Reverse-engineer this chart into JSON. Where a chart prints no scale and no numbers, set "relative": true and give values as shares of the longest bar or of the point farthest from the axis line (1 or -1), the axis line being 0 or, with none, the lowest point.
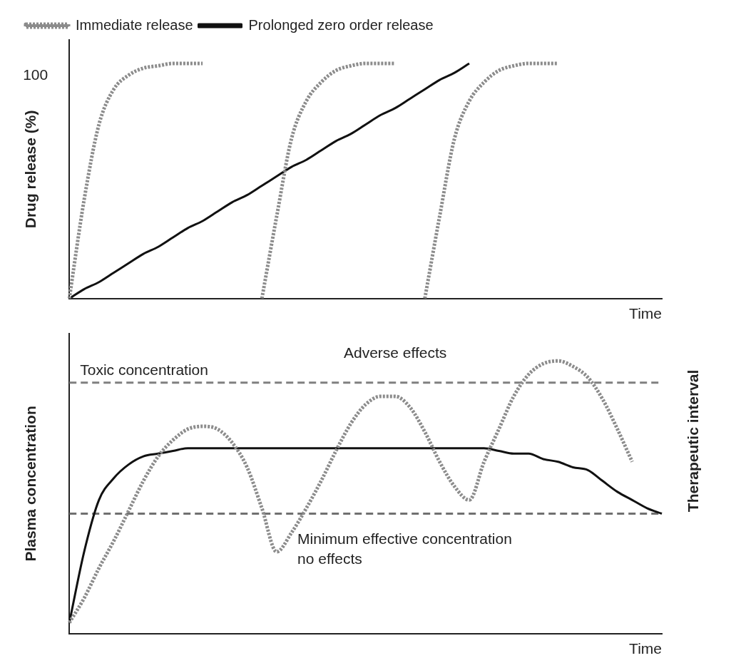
{
  "chart_data": [
    {
      "type": "line",
      "relative": true,
      "categories": [
        null,
        null,
        null,
        null,
        null,
        null,
        null,
        null,
        null,
        null,
        null,
        null,
        null,
        null,
        null,
        null,
        null,
        null,
        null,
        null,
        null,
        null,
        null,
        null,
        null,
        null,
        null,
        null,
        null,
        null,
        null,
        null,
        null,
        null,
        null,
        null,
        null,
        null,
        null,
        null,
        null
      ],
      "ylabel": "Drug release (%)",
      "xlabel": "Time",
      "annotations": [
        "100"
      ],
      "legend": "top left",
      "grid": false,
      "series": [
        {
          "name": "Immediate release",
          "color": "#8c8c8c",
          "line_style": "dotted",
          "values": [
            0,
            0.42,
            0.74,
            0.89,
            0.95,
            0.98,
            0.99,
            1,
            1,
            1,
            null,
            null,
            null,
            0,
            0.35,
            0.68,
            0.84,
            0.92,
            0.97,
            0.99,
            1,
            1,
            1,
            null,
            0,
            0.35,
            0.68,
            0.84,
            0.92,
            0.97,
            0.99,
            1,
            1,
            1,
            null,
            null,
            null,
            null,
            null,
            null,
            null
          ]
        },
        {
          "name": "Prolonged zero order release",
          "color": "#111111",
          "line_style": "solid",
          "values": [
            0,
            0.04,
            0.07,
            0.11,
            0.15,
            0.19,
            0.22,
            0.26,
            0.3,
            0.33,
            0.37,
            0.41,
            0.44,
            0.48,
            0.52,
            0.56,
            0.59,
            0.63,
            0.67,
            0.7,
            0.74,
            0.78,
            0.81,
            0.85,
            0.89,
            0.93,
            0.96,
            1,
            null,
            null,
            null,
            null,
            null,
            null,
            null,
            null,
            null,
            null,
            null,
            null,
            null
          ]
        }
      ]
    },
    {
      "type": "line",
      "relative": true,
      "categories": [
        null,
        null,
        null,
        null,
        null,
        null,
        null,
        null,
        null,
        null,
        null,
        null,
        null,
        null,
        null,
        null,
        null,
        null,
        null,
        null,
        null,
        null,
        null,
        null,
        null,
        null,
        null,
        null,
        null,
        null,
        null,
        null,
        null,
        null,
        null,
        null,
        null,
        null,
        null,
        null,
        null
      ],
      "ylabel": "Plasma concentration",
      "y2label": "Therapeutic interval",
      "xlabel": "Time",
      "annotations": [
        "Adverse effects"
      ],
      "grid": false,
      "ref_lines": [
        {
          "axis": "y",
          "value": 0.92,
          "label": "Toxic concentration",
          "color": "#808080",
          "line_style": "dashed"
        },
        {
          "axis": "y",
          "value": 0.44,
          "label": "Minimum effective concentration\nno effects",
          "color": "#707070",
          "line_style": "dashed"
        }
      ],
      "series": [
        {
          "color": "#8c8c8c",
          "line_style": "dotted",
          "values": [
            0.04,
            0.13,
            0.24,
            0.34,
            0.45,
            0.56,
            0.65,
            0.71,
            0.75,
            0.76,
            0.75,
            0.7,
            0.61,
            0.46,
            0.3,
            0.37,
            0.46,
            0.56,
            0.67,
            0.77,
            0.84,
            0.87,
            0.87,
            0.83,
            0.74,
            0.63,
            0.54,
            0.49,
            0.63,
            0.75,
            0.87,
            0.95,
            0.99,
            1,
            0.98,
            0.94,
            0.86,
            0.75,
            0.63,
            null,
            null
          ]
        },
        {
          "color": "#111111",
          "line_style": "solid",
          "values": [
            0.04,
            0.3,
            0.49,
            0.57,
            0.62,
            0.65,
            0.66,
            0.67,
            0.68,
            0.68,
            0.68,
            0.68,
            0.68,
            0.68,
            0.68,
            0.68,
            0.68,
            0.68,
            0.68,
            0.68,
            0.68,
            0.68,
            0.68,
            0.68,
            0.68,
            0.68,
            0.68,
            0.68,
            0.68,
            0.67,
            0.66,
            0.66,
            0.64,
            0.63,
            0.61,
            0.6,
            0.56,
            0.52,
            0.49,
            0.46,
            0.44
          ]
        }
      ]
    }
  ]
}
